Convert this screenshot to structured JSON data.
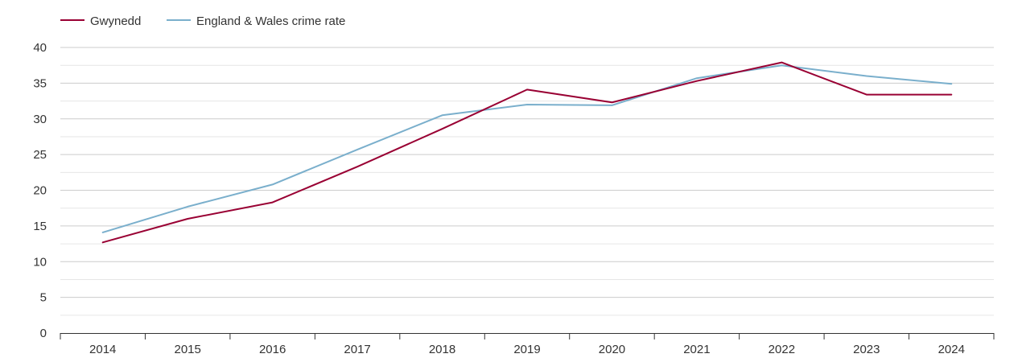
{
  "chart_data": {
    "type": "line",
    "title": "",
    "xlabel": "",
    "ylabel": "",
    "categories": [
      "2014",
      "2015",
      "2016",
      "2017",
      "2018",
      "2019",
      "2020",
      "2021",
      "2022",
      "2023",
      "2024"
    ],
    "ylim": [
      0,
      40
    ],
    "yticks": [
      0,
      5,
      10,
      15,
      20,
      25,
      30,
      35,
      40
    ],
    "grid": true,
    "legend_position": "top-left",
    "series": [
      {
        "name": "Gwynedd",
        "color": "#990033",
        "values": [
          12.7,
          16.0,
          18.3,
          23.3,
          28.6,
          34.1,
          32.3,
          35.3,
          37.9,
          33.4,
          33.4
        ]
      },
      {
        "name": "England & Wales crime rate",
        "color": "#7aafcc",
        "values": [
          14.1,
          17.7,
          20.8,
          25.7,
          30.5,
          32.0,
          31.9,
          35.7,
          37.5,
          36.0,
          34.9
        ]
      }
    ]
  }
}
